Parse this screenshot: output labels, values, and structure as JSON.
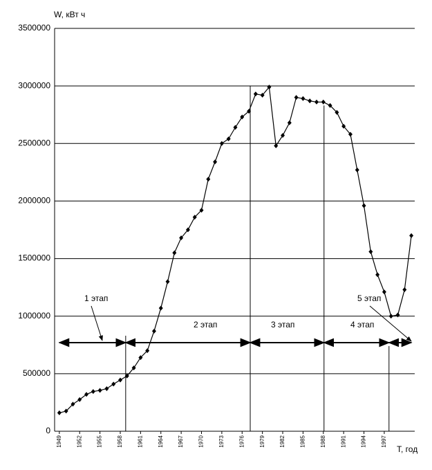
{
  "chart_data": {
    "type": "line",
    "y_axis_label": "W, кВт ч",
    "x_axis_label": "T, год",
    "x": [
      1949,
      1950,
      1951,
      1952,
      1953,
      1954,
      1955,
      1956,
      1957,
      1958,
      1959,
      1960,
      1961,
      1962,
      1963,
      1964,
      1965,
      1966,
      1967,
      1968,
      1969,
      1970,
      1971,
      1972,
      1973,
      1974,
      1975,
      1976,
      1977,
      1978,
      1979,
      1980,
      1981,
      1982,
      1983,
      1984,
      1985,
      1986,
      1987,
      1988,
      1989,
      1990,
      1991,
      1992,
      1993,
      1994,
      1995,
      1996,
      1997,
      1998,
      1999,
      2000,
      2001
    ],
    "series": [
      {
        "color": "#000000",
        "values": [
          160000,
          175000,
          235000,
          275000,
          320000,
          345000,
          355000,
          370000,
          410000,
          445000,
          480000,
          550000,
          640000,
          700000,
          870000,
          1070000,
          1300000,
          1550000,
          1680000,
          1750000,
          1860000,
          1920000,
          2190000,
          2340000,
          2500000,
          2540000,
          2640000,
          2730000,
          2780000,
          2930000,
          2920000,
          2990000,
          2480000,
          2570000,
          2680000,
          2900000,
          2890000,
          2870000,
          2860000,
          2860000,
          2830000,
          2770000,
          2650000,
          2580000,
          2270000,
          1960000,
          1560000,
          1360000,
          1210000,
          1000000,
          1010000,
          1230000,
          1700000
        ]
      }
    ],
    "xlim": [
      1948.3,
      2001.5
    ],
    "xticks": [
      1949,
      1952,
      1955,
      1958,
      1961,
      1964,
      1967,
      1970,
      1973,
      1976,
      1979,
      1982,
      1985,
      1988,
      1991,
      1994,
      1997
    ],
    "ylim": [
      0,
      3500000
    ],
    "yticks": [
      0,
      500000,
      1000000,
      1500000,
      2000000,
      2500000,
      3000000,
      3500000
    ],
    "grid": true,
    "arrow_level": 770000,
    "stages": [
      {
        "label": "1 этап",
        "start": 1949,
        "end": 1958.8,
        "divider_top": 830000
      },
      {
        "label": "2 этап",
        "start": 1958.8,
        "end": 1977.2,
        "divider_top": 3000000
      },
      {
        "label": "3 этап",
        "start": 1977.2,
        "end": 1988.1,
        "divider_top": 2830000
      },
      {
        "label": "4 этап",
        "start": 1988.1,
        "end": 1997.7,
        "divider_top": 740000
      },
      {
        "label": "5 этап",
        "start": 1997.7,
        "end": 2001
      }
    ]
  }
}
